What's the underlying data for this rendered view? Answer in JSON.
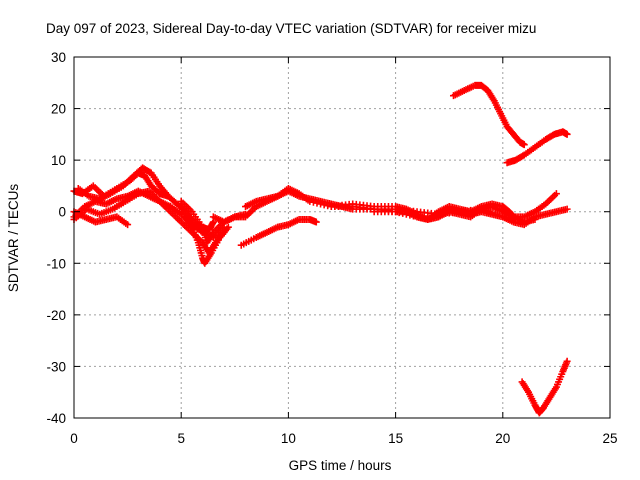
{
  "chart_data": {
    "type": "scatter",
    "title": "Day 097 of 2023, Sidereal Day-to-day VTEC variation (SDTVAR) for receiver mizu",
    "xlabel": "GPS time / hours",
    "ylabel": "SDTVAR / TECUs",
    "xlim": [
      0,
      25
    ],
    "ylim": [
      -40,
      30
    ],
    "xticks": [
      0,
      5,
      10,
      15,
      20,
      25
    ],
    "yticks": [
      -40,
      -30,
      -20,
      -10,
      0,
      10,
      20,
      30
    ],
    "grid": true,
    "marker": "+",
    "color": "#ff0000",
    "series": [
      {
        "name": "track-1",
        "points": [
          [
            0,
            4
          ],
          [
            0.4,
            3.5
          ],
          [
            0.9,
            5
          ],
          [
            1.4,
            3
          ],
          [
            2,
            4.5
          ],
          [
            2.6,
            6
          ],
          [
            3,
            7.5
          ],
          [
            3.3,
            7
          ],
          [
            3.6,
            5
          ],
          [
            4,
            3.5
          ],
          [
            4.4,
            3
          ],
          [
            4.8,
            1.5
          ],
          [
            5.2,
            0
          ],
          [
            5.6,
            -2
          ],
          [
            6,
            -3
          ],
          [
            6.3,
            -3.5
          ],
          [
            6.5,
            -2
          ]
        ]
      },
      {
        "name": "track-2",
        "points": [
          [
            0,
            -1
          ],
          [
            0.5,
            1
          ],
          [
            1,
            2
          ],
          [
            1.5,
            1.5
          ],
          [
            2,
            2.5
          ],
          [
            2.5,
            3
          ],
          [
            3,
            4
          ],
          [
            3.5,
            3
          ],
          [
            4,
            2
          ],
          [
            4.5,
            1
          ],
          [
            5,
            -0.5
          ],
          [
            5.5,
            -2.5
          ],
          [
            6,
            -4
          ],
          [
            6.5,
            -5
          ],
          [
            7,
            -3
          ]
        ]
      },
      {
        "name": "track-3",
        "points": [
          [
            0,
            -1.5
          ],
          [
            0.6,
            0.5
          ],
          [
            1.2,
            -0.5
          ],
          [
            1.8,
            0.5
          ],
          [
            2.4,
            2
          ],
          [
            3,
            3.5
          ],
          [
            3.5,
            4
          ],
          [
            4,
            2
          ],
          [
            4.5,
            0
          ],
          [
            5,
            -2
          ],
          [
            5.5,
            -4
          ],
          [
            6,
            -6
          ],
          [
            6.3,
            -8
          ],
          [
            6.6,
            -6
          ],
          [
            7,
            -4
          ]
        ]
      },
      {
        "name": "track-4",
        "points": [
          [
            0,
            0
          ],
          [
            0.5,
            -1
          ],
          [
            1,
            -2
          ],
          [
            1.5,
            -1.5
          ],
          [
            2,
            -1
          ],
          [
            2.5,
            -2.5
          ]
        ]
      },
      {
        "name": "track-5",
        "points": [
          [
            0.2,
            4.5
          ],
          [
            0.7,
            3
          ],
          [
            1.2,
            2.5
          ],
          [
            1.7,
            3.5
          ],
          [
            2.3,
            5
          ],
          [
            2.8,
            7
          ],
          [
            3.2,
            8.5
          ],
          [
            3.6,
            7.5
          ],
          [
            4,
            5
          ],
          [
            4.4,
            3
          ]
        ]
      },
      {
        "name": "track-6",
        "points": [
          [
            5,
            2
          ],
          [
            5.5,
            0
          ],
          [
            6,
            -3
          ],
          [
            6.2,
            -6
          ],
          [
            6.5,
            -4
          ],
          [
            7,
            -2
          ],
          [
            7.5,
            -1
          ],
          [
            8,
            -0.5
          ]
        ]
      },
      {
        "name": "track-7",
        "points": [
          [
            5.2,
            -1
          ],
          [
            5.5,
            -3
          ],
          [
            5.8,
            -6
          ],
          [
            6,
            -9
          ],
          [
            6.1,
            -10
          ],
          [
            6.4,
            -8
          ],
          [
            6.8,
            -5
          ],
          [
            7.2,
            -3
          ]
        ]
      },
      {
        "name": "track-8",
        "points": [
          [
            6.5,
            -1
          ],
          [
            7,
            -2
          ],
          [
            7.5,
            -1
          ],
          [
            8,
            -1
          ],
          [
            8.5,
            1
          ],
          [
            9,
            2
          ],
          [
            9.5,
            3
          ],
          [
            10,
            4.5
          ],
          [
            10.5,
            3.5
          ],
          [
            11,
            2
          ],
          [
            12,
            1
          ],
          [
            13,
            1
          ],
          [
            14,
            0.5
          ],
          [
            15,
            0.5
          ],
          [
            16,
            0
          ],
          [
            17,
            -0.5
          ],
          [
            18,
            0
          ],
          [
            19,
            0.5
          ],
          [
            20,
            -1
          ],
          [
            20.5,
            -1.5
          ]
        ]
      },
      {
        "name": "track-9",
        "points": [
          [
            7.8,
            -6.5
          ],
          [
            8.5,
            -5
          ],
          [
            9,
            -4
          ],
          [
            9.5,
            -3
          ],
          [
            10,
            -2.5
          ],
          [
            10.5,
            -1.5
          ],
          [
            11,
            -1.5
          ],
          [
            11.3,
            -2
          ]
        ]
      },
      {
        "name": "track-10",
        "points": [
          [
            8,
            1
          ],
          [
            8.5,
            2
          ],
          [
            9,
            2.5
          ],
          [
            9.5,
            3
          ],
          [
            10,
            4
          ],
          [
            10.5,
            3
          ],
          [
            11,
            2.5
          ],
          [
            11.5,
            2
          ],
          [
            12,
            1.5
          ],
          [
            12.5,
            1
          ],
          [
            13,
            0.5
          ],
          [
            14,
            0.5
          ],
          [
            15,
            0
          ],
          [
            15.5,
            0
          ],
          [
            16,
            -1
          ],
          [
            16.5,
            -1.5
          ],
          [
            17,
            -1
          ],
          [
            17.5,
            0
          ],
          [
            18,
            -0.5
          ],
          [
            18.5,
            -1
          ],
          [
            19,
            0.5
          ],
          [
            19.5,
            1
          ],
          [
            20,
            0
          ],
          [
            20.5,
            -1
          ],
          [
            21,
            -2
          ],
          [
            21.5,
            -1.5
          ]
        ]
      },
      {
        "name": "track-11",
        "points": [
          [
            12,
            1
          ],
          [
            13,
            1.5
          ],
          [
            14,
            1
          ],
          [
            15,
            1
          ],
          [
            15.5,
            0.5
          ],
          [
            16,
            -0.5
          ],
          [
            16.5,
            -1.5
          ],
          [
            17,
            -1
          ],
          [
            17.5,
            0.5
          ],
          [
            18,
            0
          ],
          [
            18.5,
            -0.5
          ],
          [
            19,
            0
          ],
          [
            19.5,
            -0.5
          ],
          [
            20,
            -1
          ],
          [
            20.5,
            -2
          ],
          [
            21,
            -2.5
          ],
          [
            21.5,
            -1
          ],
          [
            22,
            -0.5
          ],
          [
            22.5,
            0
          ],
          [
            23,
            0.5
          ]
        ]
      },
      {
        "name": "track-12",
        "points": [
          [
            14,
            0
          ],
          [
            15,
            0
          ],
          [
            16,
            -1
          ],
          [
            16.5,
            -1.5
          ],
          [
            17,
            0
          ],
          [
            17.5,
            1
          ],
          [
            18,
            0.5
          ],
          [
            18.5,
            0
          ],
          [
            19,
            1
          ],
          [
            19.5,
            1.5
          ],
          [
            20,
            1
          ],
          [
            20.3,
            0
          ],
          [
            20.5,
            -1
          ],
          [
            21,
            -1
          ],
          [
            21.5,
            0
          ],
          [
            22,
            1.5
          ],
          [
            22.5,
            3.5
          ]
        ]
      },
      {
        "name": "track-13",
        "points": [
          [
            17.7,
            22.5
          ],
          [
            18.2,
            23.5
          ],
          [
            18.7,
            24.5
          ],
          [
            19,
            24.5
          ],
          [
            19.3,
            23.5
          ],
          [
            19.6,
            21.5
          ],
          [
            19.9,
            19
          ],
          [
            20.2,
            16.5
          ],
          [
            20.5,
            15
          ],
          [
            20.8,
            13.5
          ],
          [
            21,
            13
          ]
        ]
      },
      {
        "name": "track-14",
        "points": [
          [
            20.2,
            9.5
          ],
          [
            20.6,
            10
          ],
          [
            21,
            11
          ],
          [
            21.5,
            12.5
          ],
          [
            22,
            14
          ],
          [
            22.4,
            15
          ],
          [
            22.8,
            15.5
          ],
          [
            23,
            15
          ]
        ]
      },
      {
        "name": "track-15",
        "points": [
          [
            20.9,
            -33
          ],
          [
            21.2,
            -35
          ],
          [
            21.5,
            -37.5
          ],
          [
            21.7,
            -39
          ],
          [
            21.9,
            -38
          ],
          [
            22.2,
            -36
          ],
          [
            22.5,
            -34
          ],
          [
            22.8,
            -31
          ],
          [
            23,
            -29
          ]
        ]
      }
    ]
  }
}
